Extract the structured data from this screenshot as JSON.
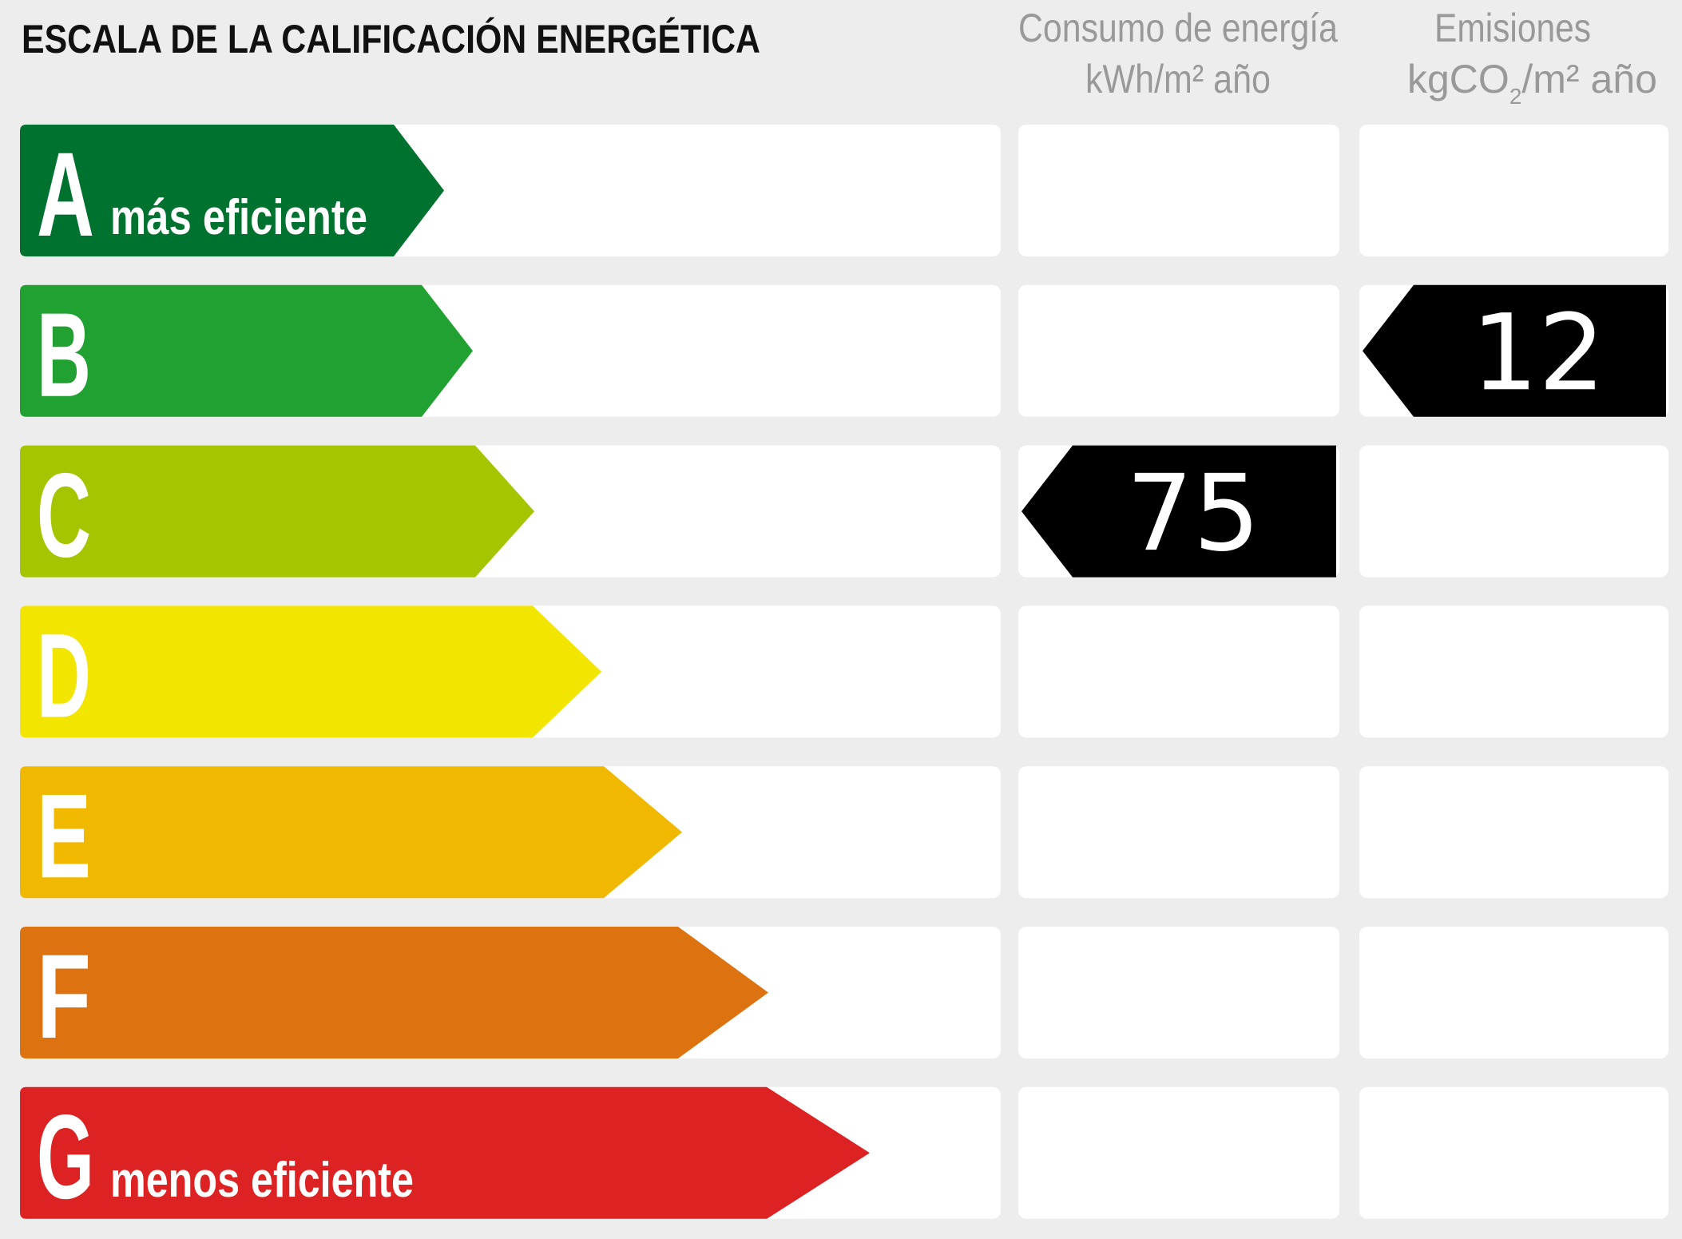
{
  "title": "ESCALA DE LA CALIFICACIÓN ENERGÉTICA",
  "columns": {
    "consumo": {
      "line1": "Consumo de energía",
      "line2": "kWh/m² año"
    },
    "emisiones": {
      "line1": "Emisiones",
      "line2_a": "kgCO",
      "line2_sub": "2",
      "line2_b": "/m² año"
    }
  },
  "classes": [
    {
      "letter": "A",
      "label": "más eficiente",
      "color": "#00722f"
    },
    {
      "letter": "B",
      "label": "",
      "color": "#21a131"
    },
    {
      "letter": "C",
      "label": "",
      "color": "#a4c500"
    },
    {
      "letter": "D",
      "label": "",
      "color": "#f2e500"
    },
    {
      "letter": "E",
      "label": "",
      "color": "#f1b800"
    },
    {
      "letter": "F",
      "label": "",
      "color": "#dd7211"
    },
    {
      "letter": "G",
      "label": "menos eficiente",
      "color": "#dc2222"
    }
  ],
  "ratings": {
    "consumo": {
      "class": "C",
      "value": "75"
    },
    "emisiones": {
      "class": "B",
      "value": "12"
    }
  },
  "indicator_color": "#000000"
}
